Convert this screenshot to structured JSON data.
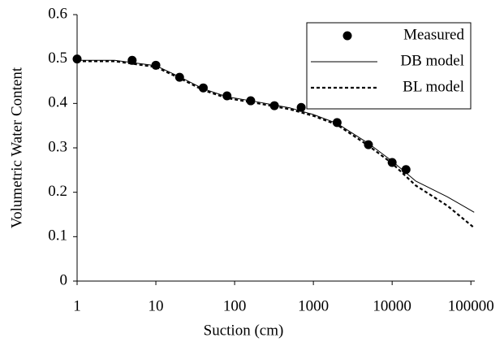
{
  "chart_data": {
    "type": "scatter-line",
    "x_label": "Suction (cm)",
    "y_label": "Volumetric Water Content",
    "xlim": [
      1,
      112000
    ],
    "ylim": [
      0,
      0.6
    ],
    "log_x": true,
    "xticks": [
      1,
      10,
      100,
      1000,
      10000,
      100000
    ],
    "yticks": [
      0,
      0.1,
      0.2,
      0.3,
      0.4,
      0.5,
      0.6
    ],
    "legend": "upper right",
    "series": [
      {
        "name": "Measured",
        "color": "#000000",
        "style": "marker",
        "x": [
          1,
          5,
          10,
          20,
          40,
          80,
          160,
          320,
          700,
          2000,
          5000,
          10000,
          15000
        ],
        "values": [
          0.5,
          0.497,
          0.486,
          0.459,
          0.435,
          0.417,
          0.406,
          0.395,
          0.391,
          0.357,
          0.307,
          0.267,
          0.251
        ]
      },
      {
        "name": "DB model",
        "color": "#000000",
        "style": "solid",
        "x": [
          1,
          3,
          10,
          20,
          40,
          80,
          200,
          500,
          1000,
          2000,
          5000,
          10000,
          20000,
          50000,
          110000
        ],
        "values": [
          0.497,
          0.497,
          0.485,
          0.46,
          0.433,
          0.415,
          0.403,
          0.39,
          0.375,
          0.355,
          0.31,
          0.27,
          0.225,
          0.19,
          0.155
        ]
      },
      {
        "name": "BL model",
        "color": "#000000",
        "style": "dotted",
        "x": [
          1,
          3,
          10,
          20,
          40,
          80,
          200,
          500,
          1000,
          2000,
          5000,
          10000,
          20000,
          50000,
          110000
        ],
        "values": [
          0.495,
          0.495,
          0.482,
          0.457,
          0.43,
          0.412,
          0.4,
          0.387,
          0.372,
          0.352,
          0.305,
          0.265,
          0.215,
          0.17,
          0.12
        ]
      }
    ]
  }
}
